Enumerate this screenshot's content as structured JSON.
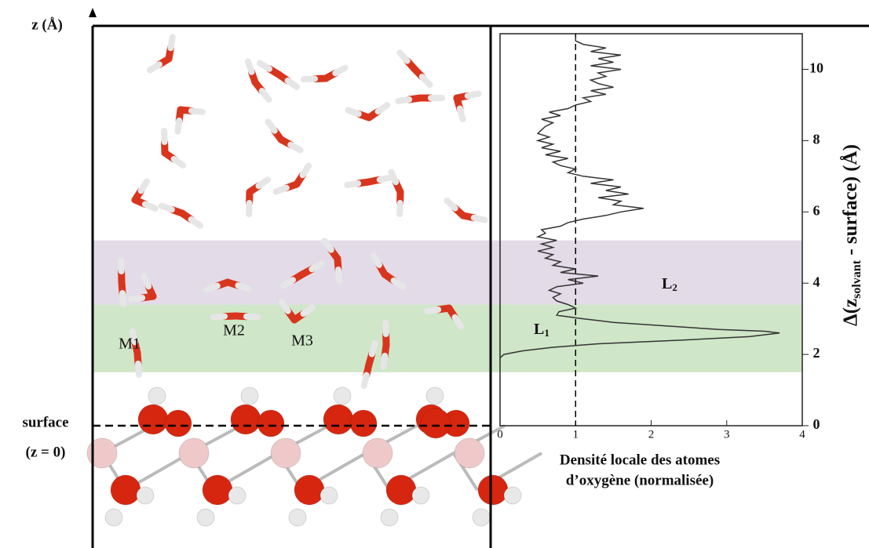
{
  "chart_data": {
    "type": "line",
    "xlabel": [
      "Densité locale des atomes",
      "d’oxygène (normalisée)"
    ],
    "ylabel": {
      "main": "Δ(z",
      "sub": "solvant",
      "rest": " - surface) (Å)"
    },
    "xlim": [
      0,
      4
    ],
    "xticks": [
      0,
      1,
      2,
      3,
      4
    ],
    "ylim": [
      0,
      11
    ],
    "yticks": [
      0,
      2,
      4,
      6,
      8,
      10
    ],
    "reference_x": 1,
    "bands": [
      {
        "label": "L",
        "sub": "1",
        "from": 1.5,
        "to": 3.4,
        "color": "#cfe6c8"
      },
      {
        "label": "L",
        "sub": "2",
        "from": 3.4,
        "to": 5.2,
        "color": "#e3dbe8"
      }
    ],
    "z": [
      1.9,
      2.0,
      2.1,
      2.2,
      2.3,
      2.4,
      2.5,
      2.6,
      2.65,
      2.7,
      2.8,
      2.9,
      3.0,
      3.1,
      3.2,
      3.3,
      3.4,
      3.5,
      3.6,
      3.7,
      3.8,
      3.9,
      4.0,
      4.1,
      4.2,
      4.3,
      4.4,
      4.5,
      4.6,
      4.7,
      4.8,
      4.9,
      5.0,
      5.1,
      5.2,
      5.3,
      5.4,
      5.5,
      5.6,
      5.7,
      5.8,
      5.9,
      6.0,
      6.1,
      6.2,
      6.3,
      6.4,
      6.5,
      6.6,
      6.7,
      6.8,
      6.9,
      7.0,
      7.1,
      7.2,
      7.3,
      7.4,
      7.5,
      7.6,
      7.7,
      7.8,
      7.9,
      8.0,
      8.1,
      8.2,
      8.3,
      8.4,
      8.5,
      8.6,
      8.7,
      8.8,
      8.9,
      9.0,
      9.1,
      9.2,
      9.3,
      9.4,
      9.5,
      9.6,
      9.7,
      9.8,
      9.9,
      10.0,
      10.1,
      10.2,
      10.3,
      10.4,
      10.5,
      10.6,
      10.7,
      10.8,
      10.9
    ],
    "values": [
      0.0,
      0.05,
      0.3,
      0.7,
      1.3,
      2.4,
      3.3,
      3.7,
      3.5,
      2.9,
      2.2,
      1.5,
      1.1,
      0.75,
      0.78,
      1.0,
      0.9,
      0.75,
      0.7,
      0.8,
      0.65,
      0.75,
      1.1,
      0.9,
      1.3,
      0.8,
      1.0,
      0.7,
      0.8,
      0.6,
      0.7,
      0.5,
      0.7,
      0.55,
      0.75,
      0.5,
      0.6,
      0.55,
      0.8,
      0.9,
      1.1,
      1.4,
      1.6,
      1.9,
      1.5,
      1.6,
      1.3,
      1.7,
      1.4,
      1.6,
      1.2,
      1.5,
      1.1,
      0.9,
      1.0,
      0.8,
      0.7,
      0.9,
      0.6,
      0.8,
      0.55,
      0.7,
      0.5,
      0.65,
      0.5,
      0.55,
      0.6,
      0.7,
      0.55,
      0.8,
      0.65,
      0.9,
      1.0,
      1.2,
      1.1,
      1.4,
      1.2,
      1.5,
      1.3,
      1.2,
      1.4,
      1.3,
      1.6,
      1.2,
      1.5,
      1.3,
      1.6,
      1.2,
      1.4,
      1.1,
      1.0,
      1.0
    ],
    "color": "#333333"
  },
  "scene": {
    "z_axis_label": "z (Å)",
    "surface_label": [
      "surface",
      "(z = 0)"
    ],
    "molecule_labels": [
      "M1",
      "M2",
      "M3"
    ]
  }
}
